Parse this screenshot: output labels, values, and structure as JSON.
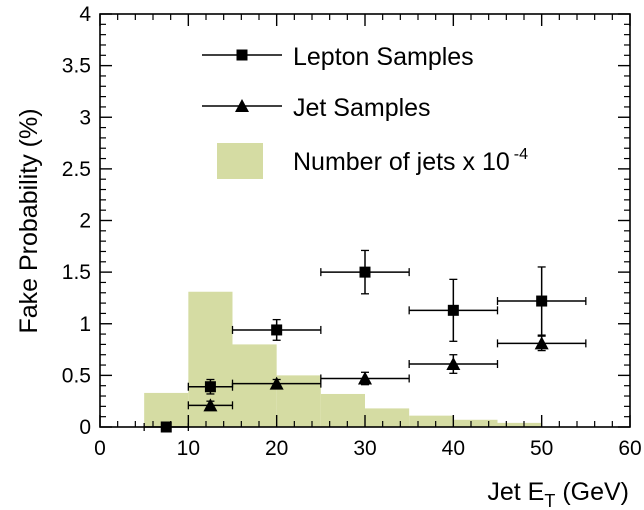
{
  "chart_data": {
    "type": "scatter",
    "title": "",
    "xlabel": {
      "main": "Jet E",
      "sub": "T",
      "unit": " (GeV)"
    },
    "ylabel": "Fake Probability (%)",
    "xlim": [
      0,
      60
    ],
    "ylim": [
      0,
      4
    ],
    "x_ticks": [
      "0",
      "10",
      "20",
      "30",
      "40",
      "50",
      "60"
    ],
    "y_ticks": [
      "0",
      "0.5",
      "1",
      "1.5",
      "2",
      "2.5",
      "3",
      "3.5",
      "4"
    ],
    "grid": false,
    "legend_position": "top-center",
    "histogram": {
      "name": "Number of jets x 10",
      "name_exponent": "-4",
      "color": "#d5dca3",
      "bin_edges": [
        5,
        10,
        15,
        20,
        25,
        30,
        35,
        40,
        45,
        50
      ],
      "values": [
        0.33,
        1.31,
        0.8,
        0.5,
        0.32,
        0.18,
        0.11,
        0.07,
        0.04
      ]
    },
    "series": [
      {
        "name": "Lepton Samples",
        "marker": "square",
        "points": [
          {
            "x": 7.5,
            "y": 0.0,
            "x_err": 2.5,
            "y_err": 0.0
          },
          {
            "x": 12.5,
            "y": 0.39,
            "x_err": 2.5,
            "y_err": 0.07
          },
          {
            "x": 20.0,
            "y": 0.94,
            "x_err": 5.0,
            "y_err": 0.1
          },
          {
            "x": 30.0,
            "y": 1.5,
            "x_err": 5.0,
            "y_err": 0.21
          },
          {
            "x": 40.0,
            "y": 1.13,
            "x_err": 5.0,
            "y_err": 0.3
          },
          {
            "x": 50.0,
            "y": 1.22,
            "x_err": 5.0,
            "y_err": 0.33
          }
        ]
      },
      {
        "name": "Jet Samples",
        "marker": "triangle",
        "points": [
          {
            "x": 12.5,
            "y": 0.21,
            "x_err": 2.5,
            "y_err": 0.04
          },
          {
            "x": 20.0,
            "y": 0.42,
            "x_err": 5.0,
            "y_err": 0.04
          },
          {
            "x": 30.0,
            "y": 0.47,
            "x_err": 5.0,
            "y_err": 0.06
          },
          {
            "x": 40.0,
            "y": 0.61,
            "x_err": 5.0,
            "y_err": 0.09
          },
          {
            "x": 50.0,
            "y": 0.81,
            "x_err": 5.0,
            "y_err": 0.07
          }
        ]
      }
    ]
  }
}
